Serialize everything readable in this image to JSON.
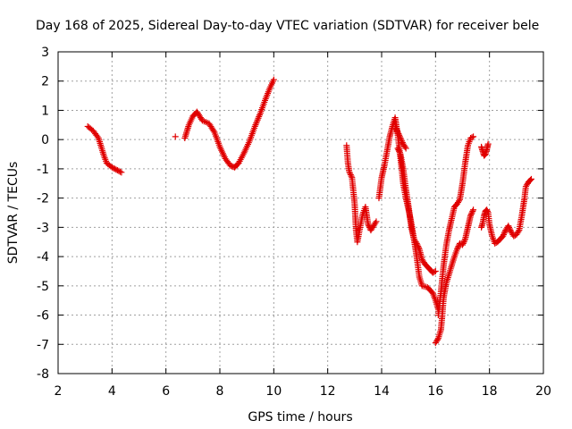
{
  "chart_data": {
    "type": "scatter",
    "title": "Day 168 of 2025, Sidereal Day-to-day VTEC variation (SDTVAR) for receiver bele",
    "xlabel": "GPS time / hours",
    "ylabel": "SDTVAR / TECUs",
    "xlim": [
      2,
      20
    ],
    "ylim": [
      -8,
      3
    ],
    "xticks": [
      2,
      4,
      6,
      8,
      10,
      12,
      14,
      16,
      18,
      20
    ],
    "yticks": [
      -8,
      -7,
      -6,
      -5,
      -4,
      -3,
      -2,
      -1,
      0,
      1,
      2,
      3
    ],
    "grid": true,
    "marker": "plus",
    "color": "#e00000",
    "series": [
      {
        "name": "SDTVAR",
        "segments": [
          [
            [
              3.1,
              0.45
            ],
            [
              3.3,
              0.3
            ],
            [
              3.5,
              0.05
            ],
            [
              3.6,
              -0.25
            ],
            [
              3.7,
              -0.55
            ],
            [
              3.8,
              -0.8
            ],
            [
              4.0,
              -0.95
            ],
            [
              4.2,
              -1.05
            ],
            [
              4.35,
              -1.12
            ]
          ],
          [
            [
              6.35,
              0.1
            ]
          ],
          [
            [
              6.7,
              0.05
            ],
            [
              6.85,
              0.5
            ],
            [
              7.0,
              0.8
            ],
            [
              7.15,
              0.95
            ],
            [
              7.35,
              0.65
            ],
            [
              7.6,
              0.55
            ],
            [
              7.8,
              0.25
            ],
            [
              8.0,
              -0.25
            ],
            [
              8.2,
              -0.65
            ],
            [
              8.4,
              -0.9
            ],
            [
              8.55,
              -0.95
            ],
            [
              8.7,
              -0.8
            ],
            [
              8.9,
              -0.45
            ],
            [
              9.1,
              -0.05
            ],
            [
              9.3,
              0.45
            ],
            [
              9.5,
              0.9
            ],
            [
              9.7,
              1.4
            ],
            [
              9.85,
              1.75
            ],
            [
              10.0,
              2.05
            ]
          ],
          [
            [
              12.7,
              -0.2
            ],
            [
              12.75,
              -0.8
            ],
            [
              12.8,
              -1.1
            ],
            [
              12.9,
              -1.3
            ],
            [
              13.0,
              -2.2
            ],
            [
              13.05,
              -3.1
            ],
            [
              13.1,
              -3.5
            ],
            [
              13.2,
              -3.0
            ],
            [
              13.3,
              -2.55
            ],
            [
              13.4,
              -2.3
            ],
            [
              13.5,
              -2.9
            ],
            [
              13.6,
              -3.1
            ],
            [
              13.7,
              -2.95
            ],
            [
              13.8,
              -2.8
            ]
          ],
          [
            [
              13.9,
              -2.0
            ],
            [
              14.0,
              -1.3
            ],
            [
              14.1,
              -0.9
            ],
            [
              14.2,
              -0.4
            ],
            [
              14.3,
              0.1
            ],
            [
              14.4,
              0.45
            ],
            [
              14.5,
              0.75
            ],
            [
              14.6,
              0.15
            ],
            [
              14.7,
              -0.65
            ],
            [
              14.8,
              -1.5
            ],
            [
              14.9,
              -2.0
            ],
            [
              15.0,
              -2.4
            ],
            [
              15.1,
              -2.85
            ],
            [
              15.2,
              -3.4
            ],
            [
              15.3,
              -4.0
            ],
            [
              15.4,
              -4.7
            ],
            [
              15.5,
              -5.0
            ],
            [
              15.7,
              -5.05
            ],
            [
              15.9,
              -5.25
            ],
            [
              16.0,
              -5.5
            ],
            [
              16.1,
              -5.8
            ]
          ],
          [
            [
              14.6,
              -0.3
            ],
            [
              14.7,
              -0.5
            ],
            [
              14.8,
              -1.0
            ],
            [
              14.9,
              -1.7
            ],
            [
              15.0,
              -2.3
            ],
            [
              15.1,
              -3.0
            ],
            [
              15.2,
              -3.4
            ],
            [
              15.3,
              -3.55
            ],
            [
              15.4,
              -3.75
            ],
            [
              15.5,
              -4.1
            ],
            [
              15.6,
              -4.25
            ],
            [
              15.7,
              -4.35
            ],
            [
              15.8,
              -4.45
            ],
            [
              15.9,
              -4.55
            ],
            [
              16.0,
              -4.5
            ]
          ],
          [
            [
              14.5,
              0.45
            ],
            [
              14.6,
              0.25
            ],
            [
              14.7,
              0.05
            ],
            [
              14.8,
              -0.15
            ],
            [
              14.9,
              -0.3
            ]
          ],
          [
            [
              16.0,
              -6.95
            ],
            [
              16.1,
              -6.8
            ],
            [
              16.2,
              -6.5
            ],
            [
              16.25,
              -6.0
            ],
            [
              16.3,
              -5.4
            ],
            [
              16.4,
              -4.9
            ],
            [
              16.5,
              -4.6
            ],
            [
              16.6,
              -4.3
            ],
            [
              16.7,
              -4.0
            ],
            [
              16.8,
              -3.75
            ],
            [
              16.9,
              -3.55
            ],
            [
              17.0,
              -3.6
            ],
            [
              17.1,
              -3.4
            ],
            [
              17.2,
              -3.0
            ],
            [
              17.3,
              -2.6
            ],
            [
              17.4,
              -2.4
            ]
          ],
          [
            [
              16.1,
              -6.0
            ],
            [
              16.2,
              -5.2
            ],
            [
              16.3,
              -4.3
            ],
            [
              16.4,
              -3.6
            ],
            [
              16.5,
              -3.1
            ],
            [
              16.6,
              -2.7
            ],
            [
              16.7,
              -2.3
            ],
            [
              16.8,
              -2.2
            ],
            [
              16.9,
              -2.05
            ],
            [
              17.0,
              -1.5
            ],
            [
              17.1,
              -0.8
            ],
            [
              17.2,
              -0.2
            ],
            [
              17.3,
              0.05
            ],
            [
              17.4,
              0.1
            ]
          ],
          [
            [
              17.7,
              -0.25
            ],
            [
              17.75,
              -0.4
            ],
            [
              17.8,
              -0.55
            ],
            [
              17.85,
              -0.5
            ],
            [
              17.9,
              -0.35
            ],
            [
              17.95,
              -0.15
            ]
          ],
          [
            [
              17.7,
              -3.0
            ],
            [
              17.75,
              -2.85
            ],
            [
              17.8,
              -2.6
            ],
            [
              17.85,
              -2.45
            ],
            [
              17.9,
              -2.4
            ],
            [
              17.95,
              -2.5
            ],
            [
              18.0,
              -2.9
            ],
            [
              18.1,
              -3.3
            ],
            [
              18.2,
              -3.55
            ],
            [
              18.3,
              -3.5
            ],
            [
              18.4,
              -3.4
            ],
            [
              18.5,
              -3.3
            ],
            [
              18.6,
              -3.1
            ],
            [
              18.7,
              -2.95
            ],
            [
              18.8,
              -3.15
            ],
            [
              18.9,
              -3.3
            ],
            [
              19.0,
              -3.25
            ],
            [
              19.1,
              -3.1
            ],
            [
              19.2,
              -2.6
            ],
            [
              19.3,
              -2.0
            ],
            [
              19.35,
              -1.6
            ],
            [
              19.45,
              -1.45
            ],
            [
              19.55,
              -1.35
            ]
          ]
        ]
      }
    ]
  }
}
